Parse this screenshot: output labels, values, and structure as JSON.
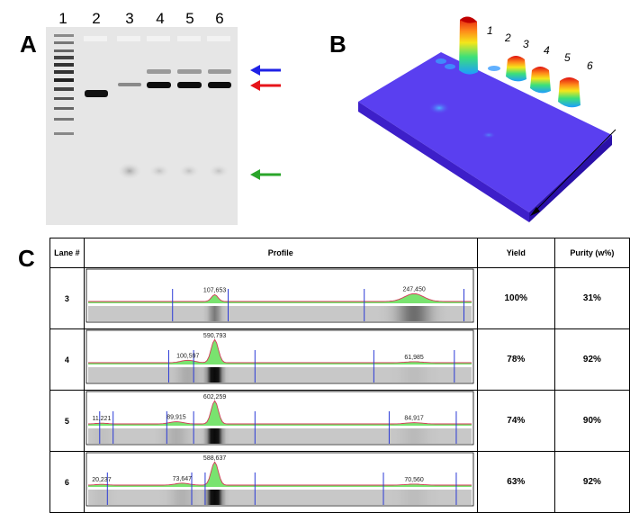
{
  "panels": {
    "a": "A",
    "b": "B",
    "c": "C"
  },
  "gel": {
    "lanes": [
      "1",
      "2",
      "3",
      "4",
      "5",
      "6"
    ],
    "arrow_colors": {
      "top": "#1f22e6",
      "middle": "#e6141a",
      "bottom": "#2aa52a"
    }
  },
  "surface3d": {
    "lanes": [
      "1",
      "2",
      "3",
      "4",
      "5",
      "6"
    ]
  },
  "table": {
    "headers": {
      "lane": "Lane #",
      "profile": "Profile",
      "yield": "Yield",
      "purity": "Purity (w%)"
    },
    "rows": [
      {
        "lane": "3",
        "yield": "100%",
        "purity": "31%",
        "peaks": [
          {
            "label": "107,653",
            "pos": 0.33
          },
          {
            "label": "247,450",
            "pos": 0.85
          }
        ]
      },
      {
        "lane": "4",
        "yield": "78%",
        "purity": "92%",
        "peaks": [
          {
            "label": "100,597",
            "pos": 0.26
          },
          {
            "label": "590,793",
            "pos": 0.33
          },
          {
            "label": "61,985",
            "pos": 0.85
          }
        ]
      },
      {
        "lane": "5",
        "yield": "74%",
        "purity": "90%",
        "peaks": [
          {
            "label": "11,221",
            "pos": 0.035
          },
          {
            "label": "89,915",
            "pos": 0.23
          },
          {
            "label": "602,259",
            "pos": 0.33
          },
          {
            "label": "84,917",
            "pos": 0.85
          }
        ]
      },
      {
        "lane": "6",
        "yield": "63%",
        "purity": "92%",
        "peaks": [
          {
            "label": "20,237",
            "pos": 0.035
          },
          {
            "label": "73,647",
            "pos": 0.245
          },
          {
            "label": "588,637",
            "pos": 0.33
          },
          {
            "label": "70,560",
            "pos": 0.85
          }
        ]
      }
    ]
  }
}
